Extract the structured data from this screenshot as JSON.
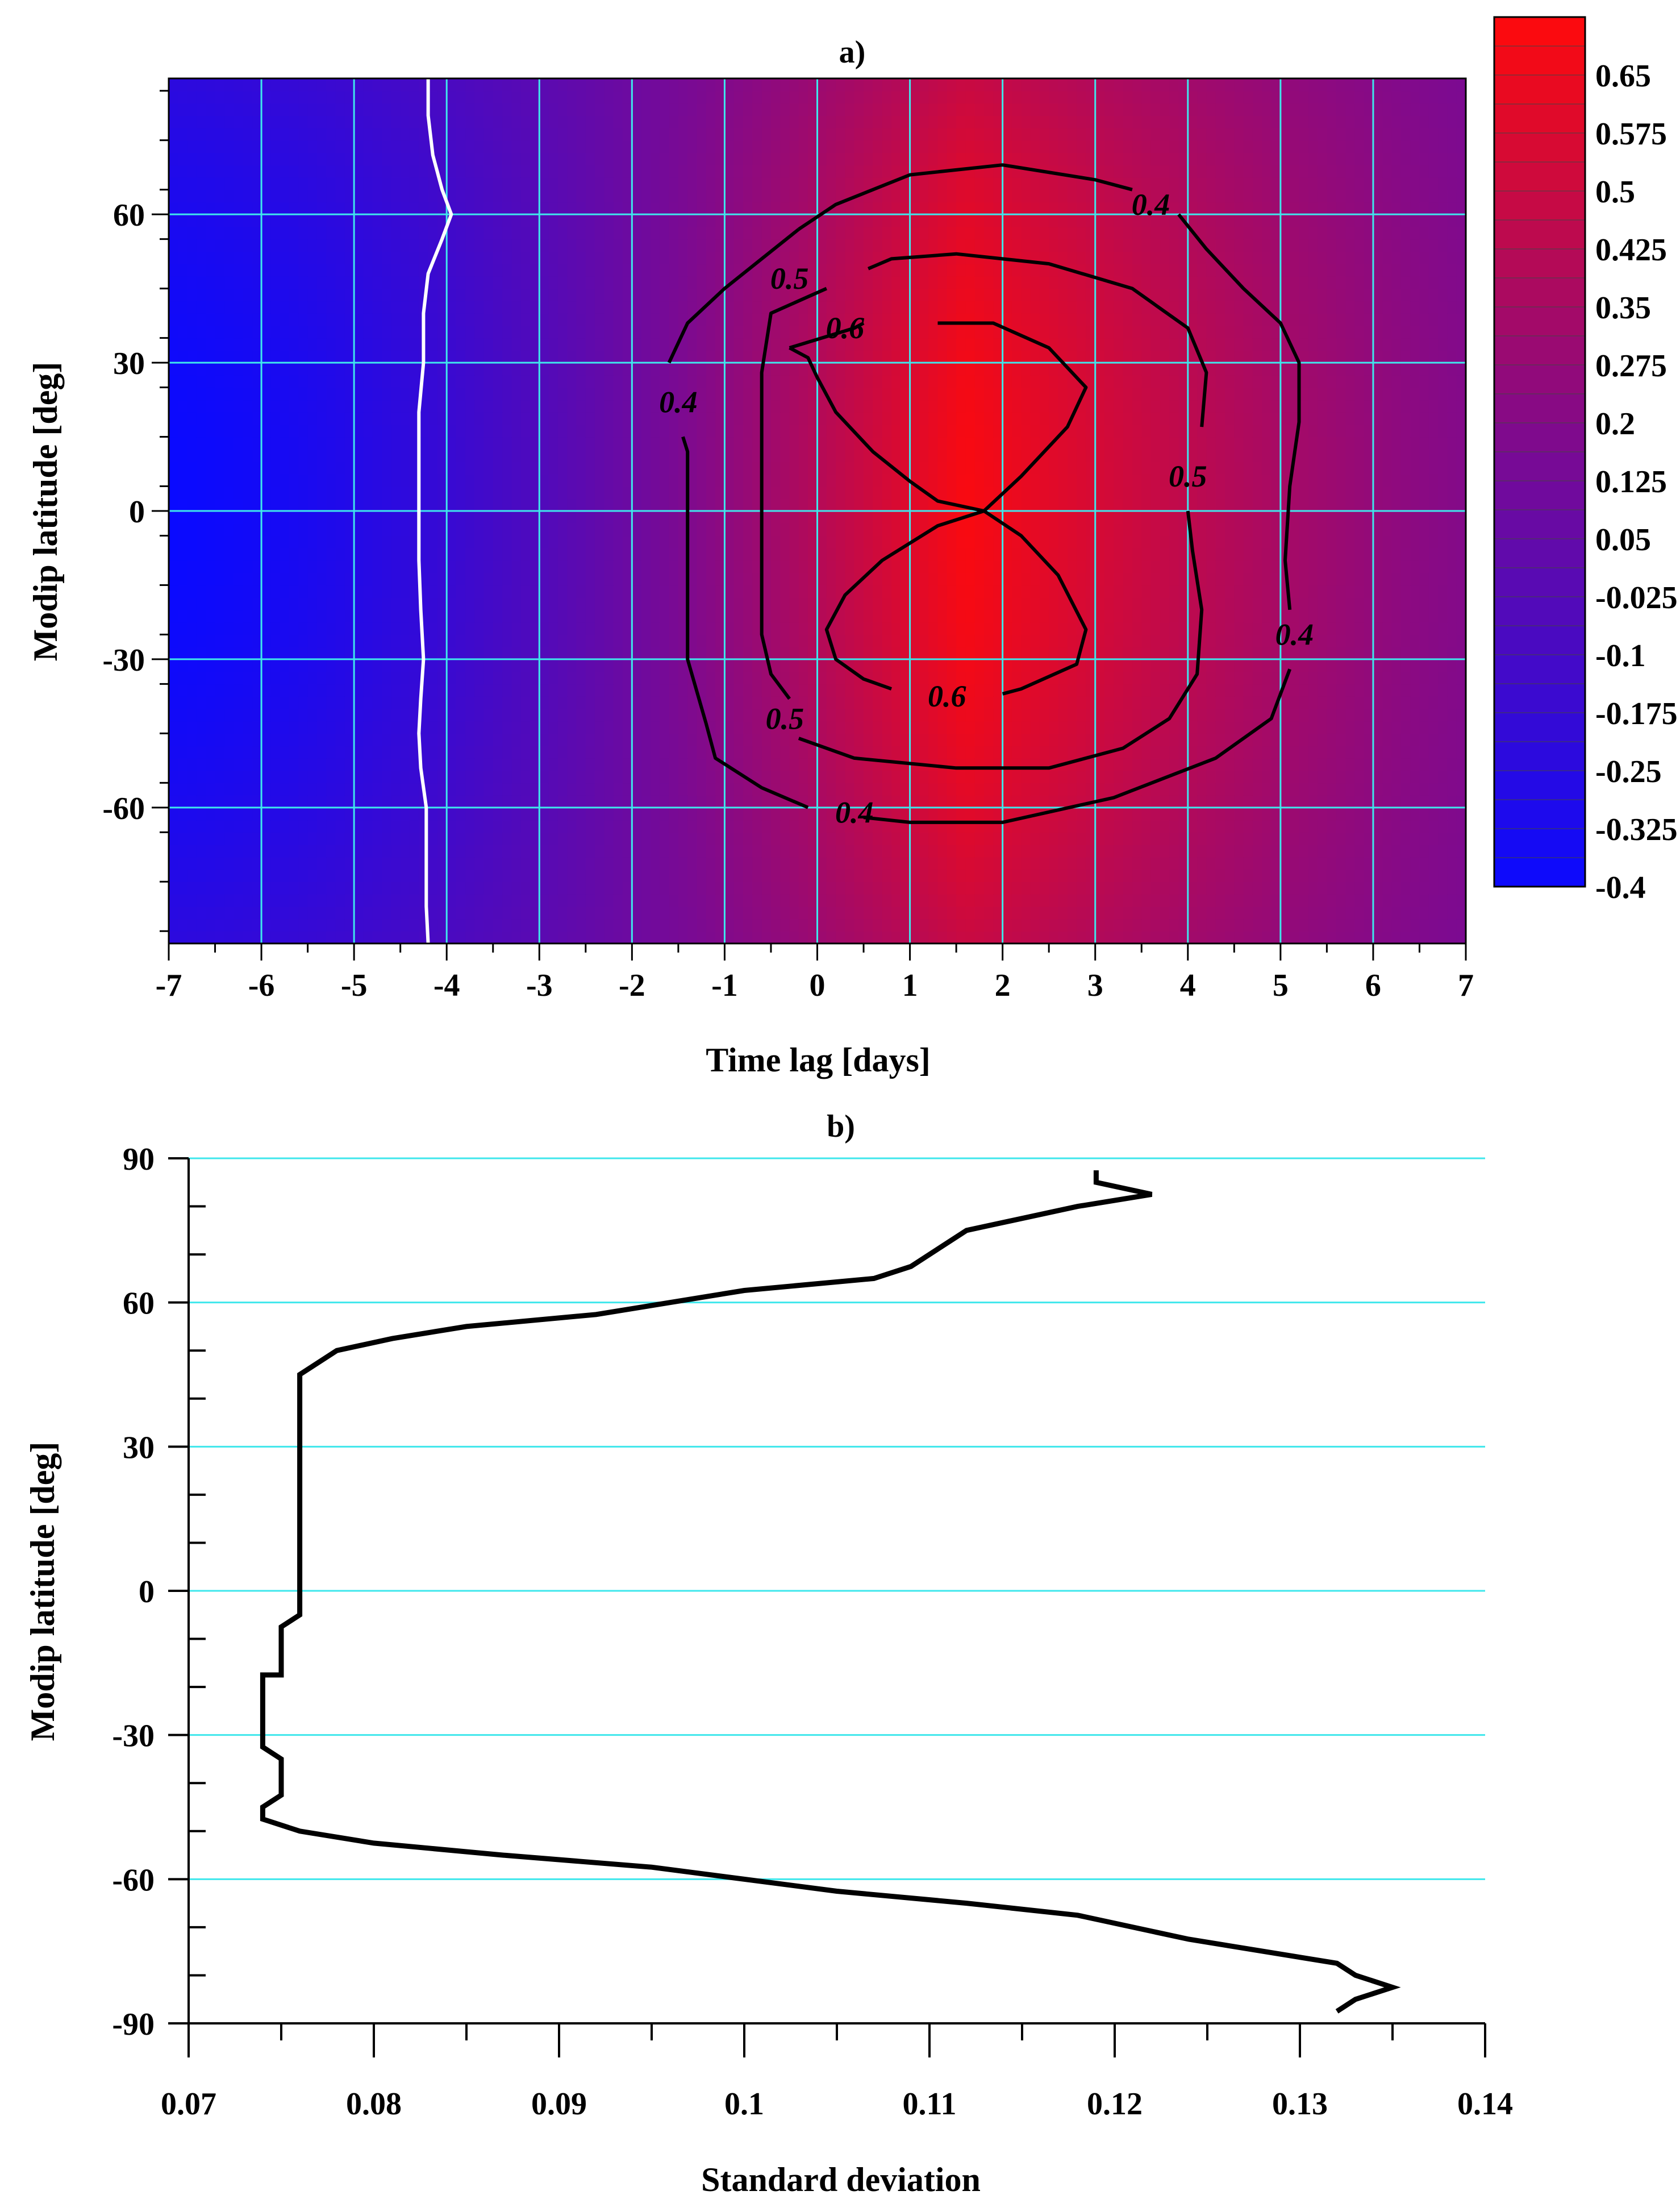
{
  "chart_data": [
    {
      "panel": "a)",
      "type": "heatmap",
      "title": "a)",
      "xlabel": "Time lag [days]",
      "ylabel": "Modip latitude [deg]",
      "xlim": [
        -7,
        7
      ],
      "ylim": [
        -87.5,
        87.5
      ],
      "xticks": [
        -7,
        -6,
        -5,
        -4,
        -3,
        -2,
        -1,
        0,
        1,
        2,
        3,
        4,
        5,
        6,
        7
      ],
      "yticks": [
        -60,
        -30,
        0,
        30,
        60
      ],
      "grid": true,
      "colors": {
        "low": "#0a0aff",
        "mid": "#7b0a92",
        "high": "#ff0a0a",
        "grid": "#3fe7ec",
        "zero_line": "#ffffff"
      },
      "colorbar": {
        "min": -0.4,
        "max": 0.725,
        "tick_labels": [
          "0.65",
          "0.575",
          "0.5",
          "0.425",
          "0.35",
          "0.275",
          "0.2",
          "0.125",
          "0.05",
          "-0.025",
          "-0.1",
          "-0.175",
          "-0.25",
          "-0.325",
          "-0.4"
        ],
        "tick_values": [
          0.65,
          0.575,
          0.5,
          0.425,
          0.35,
          0.275,
          0.2,
          0.125,
          0.05,
          -0.025,
          -0.1,
          -0.175,
          -0.25,
          -0.325,
          -0.4
        ]
      },
      "field_model": {
        "peak_lag": 1.6,
        "peak_value": 0.7,
        "zero_lag": -4.3
      },
      "contour_labels": [
        {
          "text": "0.4",
          "x": 3.6,
          "y": 62
        },
        {
          "text": "0.5",
          "x": -0.3,
          "y": 47
        },
        {
          "text": "0.6",
          "x": 0.3,
          "y": 37
        },
        {
          "text": "0.4",
          "x": -1.5,
          "y": 22
        },
        {
          "text": "0.5",
          "x": 4.0,
          "y": 7
        },
        {
          "text": "0.4",
          "x": 5.15,
          "y": -25
        },
        {
          "text": "0.6",
          "x": 1.4,
          "y": -37.5
        },
        {
          "text": "0.5",
          "x": -0.35,
          "y": -42
        },
        {
          "text": "0.4",
          "x": 0.4,
          "y": -61
        }
      ],
      "contours": [
        {
          "level": 0.4,
          "points": [
            [
              -0.2,
              57
            ],
            [
              0.2,
              62
            ],
            [
              1,
              68
            ],
            [
              2,
              70
            ],
            [
              3,
              67
            ],
            [
              3.4,
              65
            ]
          ],
          "closed": false
        },
        {
          "level": 0.4,
          "points": [
            [
              3.9,
              60
            ],
            [
              4.2,
              53
            ],
            [
              4.6,
              45
            ],
            [
              5,
              38
            ],
            [
              5.2,
              30
            ],
            [
              5.2,
              18
            ],
            [
              5.1,
              5
            ],
            [
              5.05,
              -10
            ],
            [
              5.1,
              -20
            ]
          ],
          "closed": false
        },
        {
          "level": 0.4,
          "points": [
            [
              5.1,
              -32
            ],
            [
              4.9,
              -42
            ],
            [
              4.3,
              -50
            ],
            [
              3.2,
              -58
            ],
            [
              2,
              -63
            ],
            [
              1,
              -63
            ],
            [
              0.5,
              -62
            ]
          ],
          "closed": false
        },
        {
          "level": 0.4,
          "points": [
            [
              -0.1,
              -60
            ],
            [
              -0.6,
              -56
            ],
            [
              -1.1,
              -50
            ],
            [
              -1.2,
              -43
            ],
            [
              -1.4,
              -30
            ],
            [
              -1.4,
              -15
            ],
            [
              -1.4,
              0
            ],
            [
              -1.4,
              12
            ],
            [
              -1.45,
              15
            ]
          ],
          "closed": false
        },
        {
          "level": 0.4,
          "points": [
            [
              -1.6,
              30
            ],
            [
              -1.4,
              38
            ],
            [
              -1,
              45
            ],
            [
              -0.6,
              51
            ],
            [
              -0.2,
              57
            ]
          ],
          "closed": false
        },
        {
          "level": 0.5,
          "points": [
            [
              0.1,
              45
            ],
            [
              -0.5,
              40
            ],
            [
              -0.6,
              28
            ],
            [
              -0.6,
              10
            ],
            [
              -0.6,
              -10
            ],
            [
              -0.6,
              -25
            ],
            [
              -0.5,
              -33
            ],
            [
              -0.3,
              -38
            ]
          ],
          "closed": false
        },
        {
          "level": 0.5,
          "points": [
            [
              -0.2,
              -46
            ],
            [
              0.4,
              -50
            ],
            [
              1.5,
              -52
            ],
            [
              2.5,
              -52
            ],
            [
              3.3,
              -48
            ],
            [
              3.8,
              -42
            ],
            [
              4.1,
              -33
            ],
            [
              4.15,
              -20
            ],
            [
              4.05,
              -8
            ],
            [
              4.0,
              0
            ]
          ],
          "closed": false
        },
        {
          "level": 0.5,
          "points": [
            [
              4.15,
              17
            ],
            [
              4.2,
              28
            ],
            [
              4,
              37
            ],
            [
              3.4,
              45
            ],
            [
              2.5,
              50
            ],
            [
              1.5,
              52
            ],
            [
              0.8,
              51
            ],
            [
              0.55,
              49
            ]
          ],
          "closed": false
        },
        {
          "level": 0.6,
          "points": [
            [
              -0.3,
              33
            ],
            [
              0.4,
              37
            ],
            [
              0.5,
              38
            ]
          ],
          "closed": false
        },
        {
          "level": 0.6,
          "points": [
            [
              1.3,
              38
            ],
            [
              1.9,
              38
            ],
            [
              2.5,
              33
            ],
            [
              2.9,
              25
            ],
            [
              2.7,
              17
            ],
            [
              2.2,
              7
            ],
            [
              1.8,
              0
            ],
            [
              1.3,
              2
            ],
            [
              1.0,
              6
            ],
            [
              0.6,
              12
            ],
            [
              0.2,
              20
            ],
            [
              0,
              27
            ],
            [
              -0.1,
              31
            ],
            [
              -0.3,
              33
            ]
          ],
          "closed": false
        },
        {
          "level": 0.6,
          "points": [
            [
              1.8,
              0
            ],
            [
              2.2,
              -5
            ],
            [
              2.6,
              -13
            ],
            [
              2.9,
              -24
            ],
            [
              2.8,
              -31
            ],
            [
              2.2,
              -36
            ],
            [
              2.0,
              -37
            ]
          ],
          "closed": false
        },
        {
          "level": 0.6,
          "points": [
            [
              0.8,
              -36
            ],
            [
              0.5,
              -34
            ],
            [
              0.2,
              -30
            ],
            [
              0.1,
              -24
            ],
            [
              0.3,
              -17
            ],
            [
              0.7,
              -10
            ],
            [
              1.3,
              -3
            ],
            [
              1.8,
              0
            ]
          ],
          "closed": false
        }
      ],
      "zero_line": [
        [
          -4.2,
          87.5
        ],
        [
          -4.2,
          80
        ],
        [
          -4.15,
          72
        ],
        [
          -4.05,
          65
        ],
        [
          -3.95,
          60
        ],
        [
          -4.05,
          55
        ],
        [
          -4.2,
          48
        ],
        [
          -4.25,
          40
        ],
        [
          -4.25,
          30
        ],
        [
          -4.3,
          20
        ],
        [
          -4.3,
          10
        ],
        [
          -4.3,
          0
        ],
        [
          -4.3,
          -10
        ],
        [
          -4.28,
          -20
        ],
        [
          -4.25,
          -30
        ],
        [
          -4.28,
          -38
        ],
        [
          -4.3,
          -45
        ],
        [
          -4.28,
          -52
        ],
        [
          -4.22,
          -60
        ],
        [
          -4.22,
          -70
        ],
        [
          -4.22,
          -80
        ],
        [
          -4.2,
          -87.5
        ]
      ]
    },
    {
      "panel": "b)",
      "type": "line",
      "title": "b)",
      "xlabel": "Standard deviation",
      "ylabel": "Modip latitude [deg]",
      "xlim": [
        0.07,
        0.14
      ],
      "ylim": [
        -90,
        90
      ],
      "xticks": [
        0.07,
        0.08,
        0.09,
        0.1,
        0.11,
        0.12,
        0.13,
        0.14
      ],
      "xtick_labels": [
        "0.07",
        "0.08",
        "0.09",
        "0.1",
        "0.11",
        "0.12",
        "0.13",
        "0.14"
      ],
      "yticks": [
        -90,
        -60,
        -30,
        0,
        30,
        60,
        90
      ],
      "ytick_labels": [
        "-90",
        "-60",
        "-30",
        "0",
        "30",
        "60",
        "90"
      ],
      "grid": true,
      "colors": {
        "line": "#000000",
        "grid": "#3fe7ec"
      },
      "series": [
        {
          "name": "Standard deviation",
          "x": [
            0.119,
            0.119,
            0.122,
            0.118,
            0.112,
            0.109,
            0.107,
            0.1,
            0.092,
            0.085,
            0.081,
            0.078,
            0.076,
            0.076,
            0.076,
            0.076,
            0.076,
            0.075,
            0.075,
            0.074,
            0.074,
            0.074,
            0.075,
            0.075,
            0.074,
            0.074,
            0.076,
            0.08,
            0.087,
            0.095,
            0.105,
            0.112,
            0.118,
            0.124,
            0.132,
            0.133,
            0.135,
            0.133,
            0.132
          ],
          "y": [
            87.5,
            85,
            82.5,
            80,
            75,
            67.5,
            65,
            62.5,
            57.5,
            55,
            52.5,
            50,
            45,
            30,
            10,
            0,
            -5,
            -7.5,
            -17.5,
            -17.5,
            -30,
            -32.5,
            -35,
            -42.5,
            -45,
            -47.5,
            -50,
            -52.5,
            -55,
            -57.5,
            -62.5,
            -65,
            -67.5,
            -72.5,
            -77.5,
            -80,
            -82.5,
            -85,
            -87.5
          ]
        }
      ]
    }
  ]
}
